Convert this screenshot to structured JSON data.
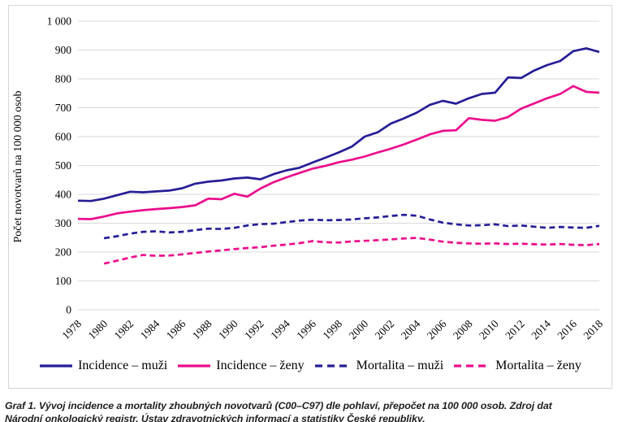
{
  "caption": {
    "line1": "Graf 1. Vývoj incidence a mortality zhoubných novotvarů (C00–C97) dle pohlaví, přepočet na 100 000 osob. Zdroj dat",
    "line2": "Národní onkologický registr, Ústav zdravotnických informací a statistiky České republiky."
  },
  "chart_data": {
    "type": "line",
    "title": "",
    "xlabel": "",
    "ylabel": "Počet novotvarů na 100 000 osob",
    "ylim": [
      0,
      1000
    ],
    "ytick_step": 100,
    "y_tick_labels": [
      "0",
      "100",
      "200",
      "300",
      "400",
      "500",
      "600",
      "700",
      "800",
      "900",
      "1 000"
    ],
    "x_ticks": [
      1978,
      1980,
      1982,
      1984,
      1986,
      1988,
      1990,
      1992,
      1994,
      1996,
      1998,
      2000,
      2002,
      2004,
      2006,
      2008,
      2010,
      2012,
      2014,
      2016,
      2018
    ],
    "x_range": [
      1978,
      2018
    ],
    "grid": "horizontal",
    "legend_position": "bottom",
    "colors": {
      "navy": "#251e96",
      "magenta": "#eb0e8c",
      "gridline": "#d9d9d9"
    },
    "series": [
      {
        "name": "Incidence – muži",
        "color": "#251e96",
        "style": "solid",
        "start_year": 1978,
        "values": [
          378,
          377,
          385,
          397,
          409,
          407,
          410,
          413,
          421,
          437,
          444,
          448,
          455,
          458,
          452,
          470,
          483,
          492,
          510,
          527,
          545,
          565,
          600,
          615,
          645,
          663,
          683,
          710,
          724,
          714,
          733,
          748,
          752,
          805,
          803,
          829,
          848,
          862,
          896,
          906,
          893
        ]
      },
      {
        "name": "Incidence – ženy",
        "color": "#eb0e8c",
        "style": "solid",
        "start_year": 1978,
        "values": [
          315,
          314,
          323,
          334,
          340,
          345,
          349,
          352,
          356,
          362,
          385,
          383,
          402,
          392,
          420,
          442,
          459,
          474,
          489,
          499,
          511,
          520,
          531,
          545,
          558,
          573,
          590,
          608,
          620,
          622,
          664,
          658,
          655,
          668,
          697,
          715,
          733,
          748,
          775,
          755,
          752
        ]
      },
      {
        "name": "Mortalita – muži",
        "color": "#251e96",
        "style": "dashed",
        "start_year": 1980,
        "values": [
          248,
          255,
          264,
          270,
          272,
          268,
          270,
          276,
          281,
          280,
          284,
          292,
          297,
          298,
          304,
          309,
          312,
          310,
          311,
          313,
          317,
          320,
          325,
          329,
          326,
          313,
          302,
          296,
          292,
          293,
          296,
          290,
          292,
          288,
          284,
          287,
          285,
          284,
          291
        ]
      },
      {
        "name": "Mortalita – ženy",
        "color": "#eb0e8c",
        "style": "dashed",
        "start_year": 1980,
        "values": [
          160,
          170,
          181,
          190,
          187,
          188,
          192,
          197,
          202,
          206,
          210,
          214,
          217,
          222,
          226,
          231,
          238,
          234,
          233,
          237,
          239,
          241,
          244,
          247,
          249,
          243,
          236,
          232,
          230,
          229,
          230,
          228,
          229,
          227,
          226,
          228,
          225,
          224,
          228
        ]
      }
    ]
  }
}
